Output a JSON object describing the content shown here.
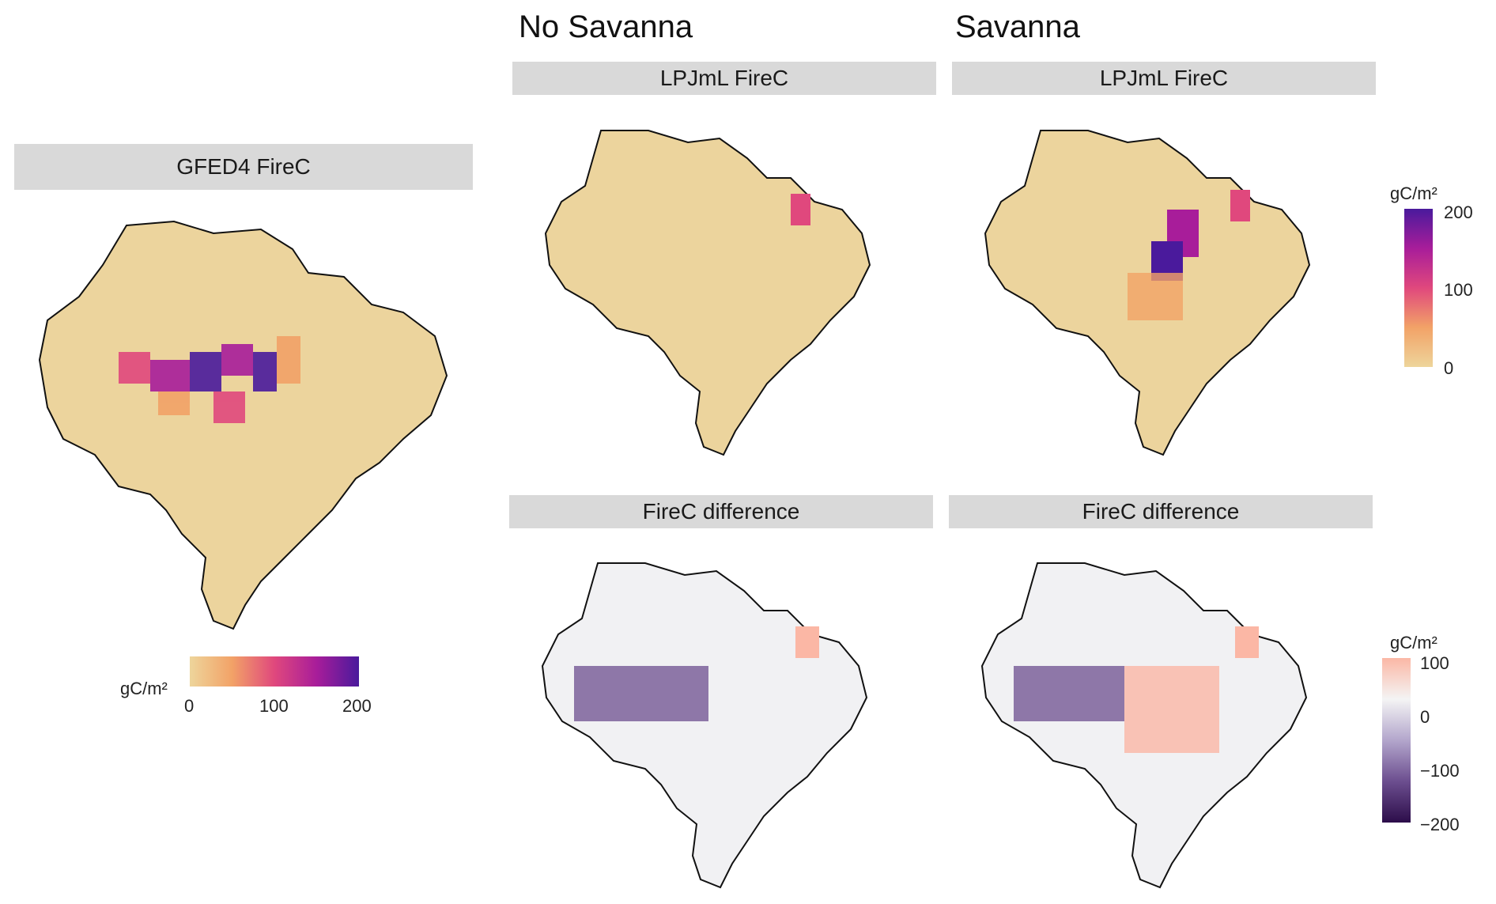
{
  "titles": {
    "no_savanna": "No Savanna",
    "savanna": "Savanna"
  },
  "panels": {
    "gfed": "GFED4 FireC",
    "lpj_no": "LPJmL FireC",
    "lpj_sav": "LPJmL FireC",
    "diff_no": "FireC difference",
    "diff_sav": "FireC difference"
  },
  "legend_firec": {
    "title": "gC/m²",
    "ticks": [
      "0",
      "100",
      "200"
    ],
    "colors": [
      "#eed59b",
      "#f2a267",
      "#e0487d",
      "#a81d9a",
      "#4a1a9c"
    ]
  },
  "legend_diff": {
    "title": "gC/m²",
    "ticks": [
      "100",
      "0",
      "−100",
      "−200"
    ],
    "colors": [
      "#fbb7a5",
      "#f4f4f4",
      "#b3a6cc",
      "#6c4e8f",
      "#2c0d4a"
    ]
  },
  "map_colors": {
    "land": "#ecd49d",
    "diff_land": "#f1f1f3",
    "border": "#111111"
  }
}
